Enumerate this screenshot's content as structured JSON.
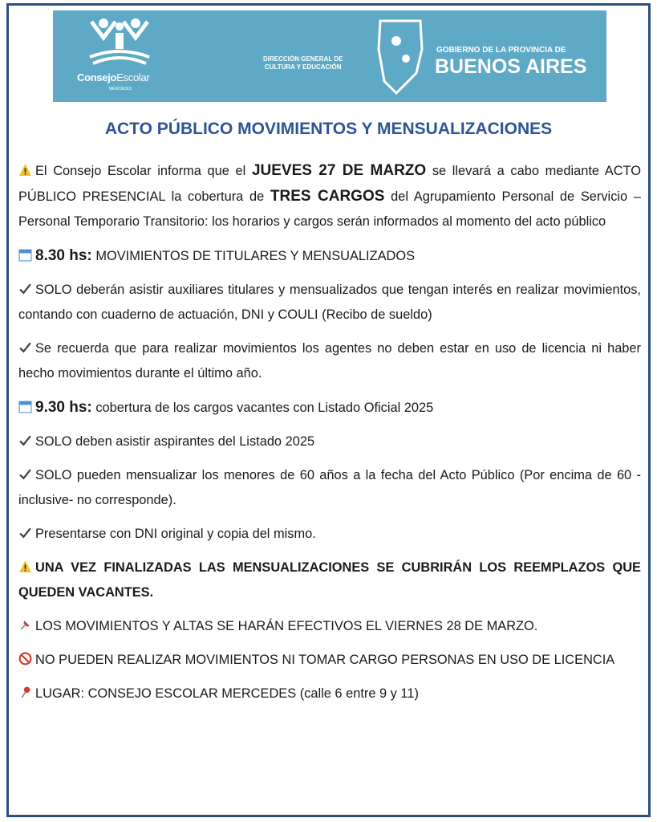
{
  "header": {
    "logo_name_a": "Consejo",
    "logo_name_b": "Escolar",
    "logo_sub": "MERCEDES",
    "direccion": [
      "DIRECCIÓN GENERAL DE",
      "CULTURA Y EDUCACIÓN"
    ],
    "gobierno": "GOBIERNO DE LA PROVINCIA DE",
    "provincia": "BUENOS AIRES"
  },
  "title": "ACTO PÚBLICO MOVIMIENTOS Y MENSUALIZACIONES",
  "paragraphs": [
    [
      "El Consejo Escolar informa que el ",
      "JUEVES 27 DE MARZO",
      " se llevará a cabo mediante ACTO PÚBLICO PRESENCIAL la cobertura de ",
      "TRES CARGOS",
      " del Agrupamiento Personal de Servicio – Personal Temporario Transitorio: los horarios y cargos serán informados al momento del acto público"
    ],
    [
      "8.30 hs:",
      " MOVIMIENTOS DE TITULARES Y MENSUALIZADOS"
    ],
    [
      "SOLO deberán asistir auxiliares titulares y mensualizados que tengan interés en realizar movimientos, contando con cuaderno de actuación, DNI y COULI (Recibo de sueldo)"
    ],
    [
      "Se recuerda que para realizar movimientos los agentes no deben estar en uso de licencia ni haber hecho movimientos durante el último año."
    ],
    [
      "9.30 hs:",
      " cobertura de los cargos vacantes con Listado Oficial 2025"
    ],
    [
      "SOLO deben asistir aspirantes del Listado 2025"
    ],
    [
      "SOLO pueden mensualizar los menores de 60 años a la fecha del Acto Público (Por encima de 60 -inclusive- no corresponde)."
    ],
    [
      "Presentarse con DNI original y copia del mismo."
    ],
    [
      "UNA VEZ FINALIZADAS LAS MENSUALIZACIONES SE CUBRIRÁN LOS REEMPLAZOS QUE QUEDEN VACANTES."
    ],
    [
      "LOS MOVIMIENTOS Y ALTAS SE HARÁN EFECTIVOS EL VIERNES 28 DE MARZO."
    ],
    [
      "NO PUEDEN REALIZAR MOVIMIENTOS NI TOMAR CARGO PERSONAS EN USO DE LICENCIA"
    ],
    [
      "LUGAR: CONSEJO ESCOLAR MERCEDES (calle 6 entre 9 y 11)"
    ]
  ]
}
